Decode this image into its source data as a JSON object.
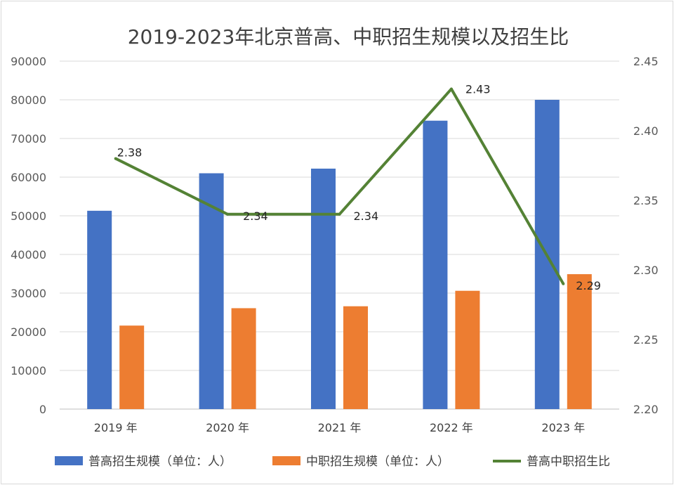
{
  "chart_data": {
    "type": "bar",
    "title": "2019-2023年北京普高、中职招生规模以及招生比",
    "categories": [
      "2019 年",
      "2020 年",
      "2021 年",
      "2022 年",
      "2023 年"
    ],
    "series": [
      {
        "name": "普高招生规模（单位：人）",
        "type": "bar",
        "axis": "left",
        "color": "#4472C4",
        "values": [
          51300,
          61000,
          62200,
          74600,
          80000
        ]
      },
      {
        "name": "中职招生规模（单位：人）",
        "type": "bar",
        "axis": "left",
        "color": "#ED7D31",
        "values": [
          21600,
          26100,
          26600,
          30600,
          34900
        ]
      },
      {
        "name": "普高中职招生比",
        "type": "line",
        "axis": "right",
        "color": "#548235",
        "values": [
          2.38,
          2.34,
          2.34,
          2.43,
          2.29
        ],
        "labels": [
          "2.38",
          "2.34",
          "2.34",
          "2.43",
          "2.29"
        ]
      }
    ],
    "ylim": [
      0,
      90000
    ],
    "yticks": [
      "0",
      "10000",
      "20000",
      "30000",
      "40000",
      "50000",
      "60000",
      "70000",
      "80000",
      "90000"
    ],
    "y2lim": [
      2.2,
      2.45
    ],
    "y2ticks": [
      "2.20",
      "2.25",
      "2.30",
      "2.35",
      "2.40",
      "2.45"
    ],
    "grid": true,
    "legend": "bottom"
  }
}
